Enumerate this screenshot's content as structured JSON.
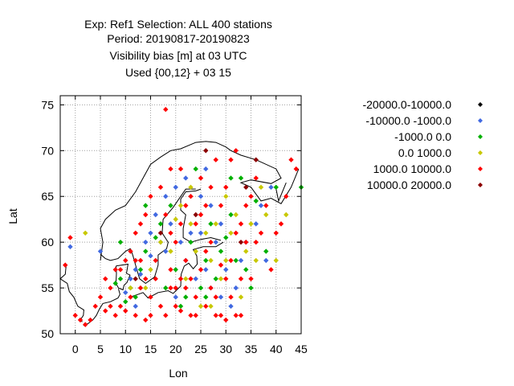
{
  "title_lines": [
    "Exp: Ref1   Selection: ALL    400 stations",
    "Period: 20190817-20190823",
    "Visibility bias [m] at  03 UTC",
    "Used {00,12} + 03 15"
  ],
  "legend": [
    {
      "label": "-20000.0-10000.0",
      "color": "#000000"
    },
    {
      "label": "-10000.0 -1000.0",
      "color": "#4169e1"
    },
    {
      "label": "-1000.0 0.0",
      "color": "#00b000"
    },
    {
      "label": "0.0 1000.0",
      "color": "#c8c800"
    },
    {
      "label": "1000.0 10000.0",
      "color": "#ff0000"
    },
    {
      "label": "10000.0 20000.0",
      "color": "#8b0000"
    }
  ],
  "chart_data": {
    "type": "scatter",
    "xlabel": "Lon",
    "ylabel": "Lat",
    "xlim": [
      -3,
      45
    ],
    "ylim": [
      50,
      76
    ],
    "xticks": [
      0,
      5,
      10,
      15,
      20,
      25,
      30,
      35,
      40,
      45
    ],
    "yticks": [
      50,
      55,
      60,
      65,
      70,
      75
    ],
    "grid": true,
    "legend_position": "right",
    "series": [
      {
        "name": "-10000.0 -1000.0",
        "color": "#4169e1",
        "points": [
          [
            -1,
            59.5
          ],
          [
            5,
            59
          ],
          [
            10,
            54.5
          ],
          [
            11,
            56
          ],
          [
            12,
            57
          ],
          [
            13,
            56.5
          ],
          [
            14,
            60
          ],
          [
            15,
            58.5
          ],
          [
            16,
            63
          ],
          [
            17,
            60
          ],
          [
            18,
            59
          ],
          [
            18,
            65
          ],
          [
            19,
            62
          ],
          [
            20,
            66
          ],
          [
            21,
            60
          ],
          [
            22,
            58
          ],
          [
            23,
            61
          ],
          [
            24,
            56
          ],
          [
            25,
            61
          ],
          [
            25,
            65
          ],
          [
            26,
            57
          ],
          [
            26,
            68
          ],
          [
            27,
            55
          ],
          [
            28,
            60
          ],
          [
            29,
            62
          ],
          [
            30,
            57
          ],
          [
            31,
            53
          ],
          [
            32,
            55
          ],
          [
            33,
            58
          ],
          [
            34,
            60
          ],
          [
            36,
            62
          ],
          [
            37,
            64
          ],
          [
            38,
            58
          ],
          [
            39,
            66
          ],
          [
            27,
            64
          ],
          [
            22,
            67
          ],
          [
            15,
            61
          ],
          [
            12,
            53
          ],
          [
            20,
            54
          ],
          [
            29,
            54
          ]
        ]
      },
      {
        "name": "-1000.0 0.0",
        "color": "#00b000",
        "points": [
          [
            8,
            55.5
          ],
          [
            9,
            56
          ],
          [
            10,
            53.5
          ],
          [
            11,
            55
          ],
          [
            12,
            54
          ],
          [
            13,
            57
          ],
          [
            14,
            59
          ],
          [
            16,
            60.5
          ],
          [
            17,
            62
          ],
          [
            19,
            64
          ],
          [
            20,
            57
          ],
          [
            21,
            53
          ],
          [
            22,
            54
          ],
          [
            23,
            60
          ],
          [
            24,
            68
          ],
          [
            25,
            55
          ],
          [
            26,
            58
          ],
          [
            27,
            62
          ],
          [
            28,
            56
          ],
          [
            29,
            59
          ],
          [
            30,
            60.5
          ],
          [
            31,
            63
          ],
          [
            32,
            58
          ],
          [
            33,
            67
          ],
          [
            34,
            57
          ],
          [
            35,
            55
          ],
          [
            36,
            64.5
          ],
          [
            38,
            59
          ],
          [
            40,
            66
          ],
          [
            45,
            66
          ],
          [
            9,
            60
          ],
          [
            18,
            55
          ],
          [
            14,
            64
          ],
          [
            26,
            54
          ],
          [
            31,
            67
          ]
        ]
      },
      {
        "name": "0.0 1000.0",
        "color": "#c8c800",
        "points": [
          [
            2,
            61
          ],
          [
            11,
            55
          ],
          [
            15,
            57
          ],
          [
            17,
            60
          ],
          [
            19,
            59
          ],
          [
            20,
            62.5
          ],
          [
            21,
            64
          ],
          [
            22,
            56
          ],
          [
            23,
            62
          ],
          [
            24,
            59
          ],
          [
            25,
            53
          ],
          [
            26,
            61
          ],
          [
            27,
            58
          ],
          [
            28,
            62
          ],
          [
            29,
            56
          ],
          [
            30,
            58
          ],
          [
            31,
            61
          ],
          [
            32,
            63
          ],
          [
            33,
            54
          ],
          [
            34,
            59
          ],
          [
            35,
            62
          ],
          [
            36,
            58
          ],
          [
            37,
            66
          ],
          [
            40,
            58
          ],
          [
            42,
            63
          ],
          [
            27,
            53
          ],
          [
            23,
            66
          ],
          [
            38,
            63
          ],
          [
            14,
            55
          ],
          [
            30,
            65
          ]
        ]
      },
      {
        "name": "1000.0 10000.0",
        "color": "#ff0000",
        "points": [
          [
            -2,
            57.5
          ],
          [
            -1,
            60.5
          ],
          [
            0,
            52
          ],
          [
            1,
            51.5
          ],
          [
            2,
            51
          ],
          [
            3,
            51.5
          ],
          [
            4,
            53
          ],
          [
            5,
            54
          ],
          [
            6,
            52.5
          ],
          [
            7,
            53
          ],
          [
            8,
            52
          ],
          [
            9,
            53
          ],
          [
            10,
            52.5
          ],
          [
            11,
            54
          ],
          [
            12,
            52
          ],
          [
            13,
            55
          ],
          [
            14,
            51.5
          ],
          [
            15,
            54
          ],
          [
            16,
            56
          ],
          [
            17,
            53
          ],
          [
            18,
            52
          ],
          [
            18,
            74.5
          ],
          [
            19,
            57
          ],
          [
            20,
            55
          ],
          [
            21,
            52.5
          ],
          [
            22,
            58
          ],
          [
            23,
            56
          ],
          [
            24,
            52
          ],
          [
            25,
            57
          ],
          [
            26,
            53
          ],
          [
            27,
            55
          ],
          [
            28,
            52
          ],
          [
            29,
            57.5
          ],
          [
            30,
            51.5
          ],
          [
            31,
            54
          ],
          [
            32,
            52
          ],
          [
            33,
            56
          ],
          [
            34,
            60
          ],
          [
            35,
            65
          ],
          [
            36,
            67
          ],
          [
            38,
            64
          ],
          [
            40,
            61
          ],
          [
            42,
            65
          ],
          [
            44,
            68
          ],
          [
            43,
            69
          ],
          [
            9,
            57
          ],
          [
            10,
            58
          ],
          [
            11,
            59
          ],
          [
            12,
            61
          ],
          [
            13,
            62
          ],
          [
            14,
            63
          ],
          [
            15,
            65
          ],
          [
            16,
            58
          ],
          [
            17,
            66
          ],
          [
            18,
            63
          ],
          [
            19,
            61
          ],
          [
            20,
            60
          ],
          [
            21,
            62
          ],
          [
            22,
            64
          ],
          [
            23,
            65
          ],
          [
            24,
            62
          ],
          [
            25,
            63
          ],
          [
            26,
            64
          ],
          [
            27,
            66
          ],
          [
            28,
            69
          ],
          [
            29,
            64
          ],
          [
            30,
            66
          ],
          [
            31,
            69
          ],
          [
            32,
            70
          ],
          [
            33,
            62
          ],
          [
            34,
            64
          ],
          [
            36,
            60
          ],
          [
            37,
            61
          ],
          [
            39,
            57
          ],
          [
            41,
            62
          ],
          [
            7,
            55
          ],
          [
            8,
            57
          ],
          [
            6,
            56
          ],
          [
            13,
            58
          ],
          [
            14,
            56
          ],
          [
            20,
            53
          ],
          [
            22,
            55
          ],
          [
            23,
            52
          ],
          [
            24,
            54
          ],
          [
            26,
            59
          ],
          [
            28,
            54
          ],
          [
            29,
            52
          ],
          [
            31,
            58
          ],
          [
            33,
            52
          ],
          [
            35,
            56
          ],
          [
            12,
            58
          ],
          [
            15,
            52
          ],
          [
            19,
            55
          ],
          [
            21,
            56
          ],
          [
            27,
            60
          ],
          [
            30,
            56
          ],
          [
            32,
            61
          ],
          [
            25,
            67
          ],
          [
            21,
            68
          ],
          [
            19,
            68
          ]
        ]
      },
      {
        "name": "10000.0 20000.0",
        "color": "#8b0000",
        "points": [
          [
            17,
            61
          ],
          [
            24,
            63
          ],
          [
            33,
            60
          ],
          [
            36,
            69
          ],
          [
            34,
            66
          ],
          [
            12,
            56
          ],
          [
            26,
            70
          ]
        ]
      }
    ]
  }
}
